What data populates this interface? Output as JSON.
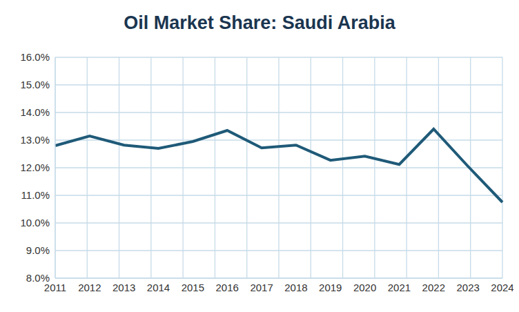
{
  "chart_data": {
    "type": "line",
    "title": "Oil Market Share: Saudi Arabia",
    "categories": [
      "2011",
      "2012",
      "2013",
      "2014",
      "2015",
      "2016",
      "2017",
      "2018",
      "2019",
      "2020",
      "2021",
      "2022",
      "2023",
      "2024"
    ],
    "values": [
      12.8,
      13.15,
      12.82,
      12.7,
      12.95,
      13.35,
      12.72,
      12.82,
      12.27,
      12.42,
      12.12,
      13.4,
      12.05,
      10.75
    ],
    "color": "#1f5a78",
    "ylim": [
      8,
      16
    ],
    "yticks": [
      {
        "value": 8,
        "label": "8.0%"
      },
      {
        "value": 9,
        "label": "9.0%"
      },
      {
        "value": 10,
        "label": "10.0%"
      },
      {
        "value": 11,
        "label": "11.0%"
      },
      {
        "value": 12,
        "label": "12.0%"
      },
      {
        "value": 13,
        "label": "13.0%"
      },
      {
        "value": 14,
        "label": "14.0%"
      },
      {
        "value": 15,
        "label": "15.0%"
      },
      {
        "value": 16,
        "label": "16.0%"
      }
    ],
    "grid": true
  }
}
